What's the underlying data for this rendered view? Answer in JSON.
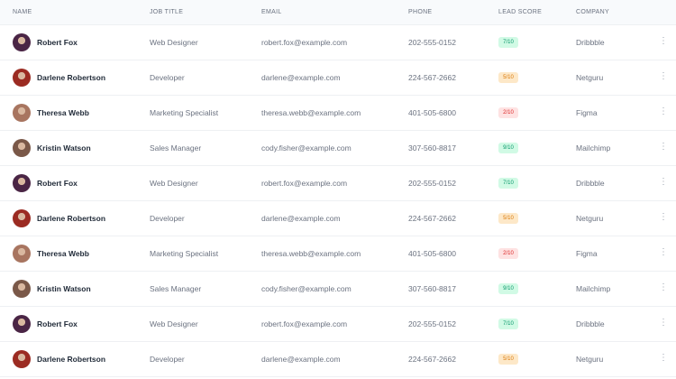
{
  "columns": [
    "NAME",
    "JOB TITLE",
    "EMAIL",
    "PHONE",
    "LEAD SCORE",
    "COMPANY"
  ],
  "score_colors": {
    "green": {
      "bg": "#d1fae5",
      "fg": "#059669"
    },
    "orange": {
      "bg": "#fde8c8",
      "fg": "#d97706"
    },
    "red": {
      "bg": "#fee2e2",
      "fg": "#dc2626"
    }
  },
  "rows": [
    {
      "name": "Robert Fox",
      "title": "Web Designer",
      "email": "robert.fox@example.com",
      "phone": "202-555-0152",
      "score": "7/10",
      "level": "green",
      "company": "Dribbble",
      "avatar": "#4a2545"
    },
    {
      "name": "Darlene Robertson",
      "title": "Developer",
      "email": "darlene@example.com",
      "phone": "224-567-2662",
      "score": "5/10",
      "level": "orange",
      "company": "Netguru",
      "avatar": "#9b2b22"
    },
    {
      "name": "Theresa Webb",
      "title": "Marketing Specialist",
      "email": "theresa.webb@example.com",
      "phone": "401-505-6800",
      "score": "2/10",
      "level": "red",
      "company": "Figma",
      "avatar": "#a87560"
    },
    {
      "name": "Kristin Watson",
      "title": "Sales Manager",
      "email": "cody.fisher@example.com",
      "phone": "307-560-8817",
      "score": "9/10",
      "level": "green",
      "company": "Mailchimp",
      "avatar": "#7a5848"
    },
    {
      "name": "Robert Fox",
      "title": "Web Designer",
      "email": "robert.fox@example.com",
      "phone": "202-555-0152",
      "score": "7/10",
      "level": "green",
      "company": "Dribbble",
      "avatar": "#4a2545"
    },
    {
      "name": "Darlene Robertson",
      "title": "Developer",
      "email": "darlene@example.com",
      "phone": "224-567-2662",
      "score": "5/10",
      "level": "orange",
      "company": "Netguru",
      "avatar": "#9b2b22"
    },
    {
      "name": "Theresa Webb",
      "title": "Marketing Specialist",
      "email": "theresa.webb@example.com",
      "phone": "401-505-6800",
      "score": "2/10",
      "level": "red",
      "company": "Figma",
      "avatar": "#a87560"
    },
    {
      "name": "Kristin Watson",
      "title": "Sales Manager",
      "email": "cody.fisher@example.com",
      "phone": "307-560-8817",
      "score": "9/10",
      "level": "green",
      "company": "Mailchimp",
      "avatar": "#7a5848"
    },
    {
      "name": "Robert Fox",
      "title": "Web Designer",
      "email": "robert.fox@example.com",
      "phone": "202-555-0152",
      "score": "7/10",
      "level": "green",
      "company": "Dribbble",
      "avatar": "#4a2545"
    },
    {
      "name": "Darlene Robertson",
      "title": "Developer",
      "email": "darlene@example.com",
      "phone": "224-567-2662",
      "score": "5/10",
      "level": "orange",
      "company": "Netguru",
      "avatar": "#9b2b22"
    }
  ]
}
